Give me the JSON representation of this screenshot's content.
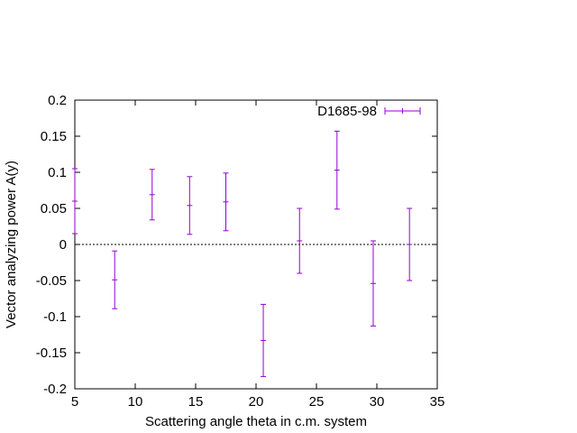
{
  "chart_data": {
    "type": "scatter",
    "title": "",
    "xlabel": "Scattering angle theta in c.m. system",
    "ylabel": "Vector analyzing power A(y)",
    "xlim": [
      5,
      35
    ],
    "ylim": [
      -0.2,
      0.2
    ],
    "x_ticks": [
      "5",
      "10",
      "15",
      "20",
      "25",
      "30",
      "35"
    ],
    "y_ticks": [
      "0.2",
      "0.15",
      "0.1",
      "0.05",
      "0",
      "-0.05",
      "-0.1",
      "-0.15",
      "-0.2"
    ],
    "grid": false,
    "zero_line": true,
    "legend_position": "top-right",
    "series": [
      {
        "name": "D1685-98",
        "color": "#9400d3",
        "points": [
          {
            "x": 5.0,
            "y": 0.06,
            "err": 0.045
          },
          {
            "x": 8.3,
            "y": -0.049,
            "err": 0.04
          },
          {
            "x": 11.4,
            "y": 0.069,
            "err": 0.035
          },
          {
            "x": 14.5,
            "y": 0.054,
            "err": 0.04
          },
          {
            "x": 17.5,
            "y": 0.059,
            "err": 0.04
          },
          {
            "x": 20.6,
            "y": -0.133,
            "err": 0.05
          },
          {
            "x": 23.6,
            "y": 0.005,
            "err": 0.045
          },
          {
            "x": 26.7,
            "y": 0.103,
            "err": 0.054
          },
          {
            "x": 29.7,
            "y": -0.054,
            "err": 0.059
          },
          {
            "x": 32.7,
            "y": 0.0,
            "err": 0.05
          }
        ]
      }
    ]
  }
}
